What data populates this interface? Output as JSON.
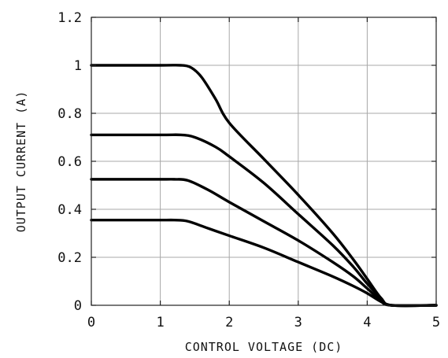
{
  "chart_data": {
    "type": "line",
    "title": "",
    "xlabel": "CONTROL VOLTAGE (DC)",
    "ylabel": "OUTPUT CURRENT (A)",
    "xlim": [
      0,
      5
    ],
    "ylim": [
      0,
      1.2
    ],
    "x_ticks": [
      0,
      1,
      2,
      3,
      4,
      5
    ],
    "y_ticks": [
      0,
      0.2,
      0.4,
      0.6,
      0.8,
      1,
      1.2
    ],
    "x_tick_labels": [
      "0",
      "1",
      "2",
      "3",
      "4",
      "5"
    ],
    "y_tick_labels": [
      "0",
      "0.2",
      "0.4",
      "0.6",
      "0.8",
      "1",
      "1.2"
    ],
    "grid": true,
    "legend": "none",
    "line_color": "#000000",
    "series": [
      {
        "points": [
          [
            0,
            1.0
          ],
          [
            1.0,
            1.0
          ],
          [
            1.3,
            1.0
          ],
          [
            1.45,
            0.99
          ],
          [
            1.6,
            0.95
          ],
          [
            1.8,
            0.86
          ],
          [
            2.0,
            0.76
          ],
          [
            2.5,
            0.61
          ],
          [
            3.0,
            0.46
          ],
          [
            3.5,
            0.3
          ],
          [
            3.8,
            0.19
          ],
          [
            4.0,
            0.11
          ],
          [
            4.2,
            0.03
          ],
          [
            4.35,
            0.0
          ],
          [
            5.0,
            0.0
          ]
        ]
      },
      {
        "points": [
          [
            0,
            0.71
          ],
          [
            1.0,
            0.71
          ],
          [
            1.3,
            0.71
          ],
          [
            1.5,
            0.7
          ],
          [
            1.8,
            0.66
          ],
          [
            2.0,
            0.62
          ],
          [
            2.5,
            0.51
          ],
          [
            3.0,
            0.38
          ],
          [
            3.5,
            0.25
          ],
          [
            3.8,
            0.16
          ],
          [
            4.0,
            0.09
          ],
          [
            4.2,
            0.03
          ],
          [
            4.35,
            0.0
          ],
          [
            5.0,
            0.0
          ]
        ]
      },
      {
        "points": [
          [
            0,
            0.525
          ],
          [
            1.0,
            0.525
          ],
          [
            1.2,
            0.525
          ],
          [
            1.4,
            0.52
          ],
          [
            1.7,
            0.48
          ],
          [
            2.0,
            0.43
          ],
          [
            2.5,
            0.35
          ],
          [
            3.0,
            0.27
          ],
          [
            3.5,
            0.18
          ],
          [
            3.8,
            0.12
          ],
          [
            4.0,
            0.07
          ],
          [
            4.2,
            0.02
          ],
          [
            4.35,
            0.0
          ],
          [
            5.0,
            0.0
          ]
        ]
      },
      {
        "points": [
          [
            0,
            0.355
          ],
          [
            1.0,
            0.355
          ],
          [
            1.2,
            0.355
          ],
          [
            1.4,
            0.35
          ],
          [
            1.7,
            0.32
          ],
          [
            2.0,
            0.29
          ],
          [
            2.5,
            0.24
          ],
          [
            3.0,
            0.18
          ],
          [
            3.5,
            0.12
          ],
          [
            3.8,
            0.08
          ],
          [
            4.0,
            0.05
          ],
          [
            4.2,
            0.015
          ],
          [
            4.35,
            0.0
          ],
          [
            5.0,
            0.0
          ]
        ]
      }
    ]
  }
}
